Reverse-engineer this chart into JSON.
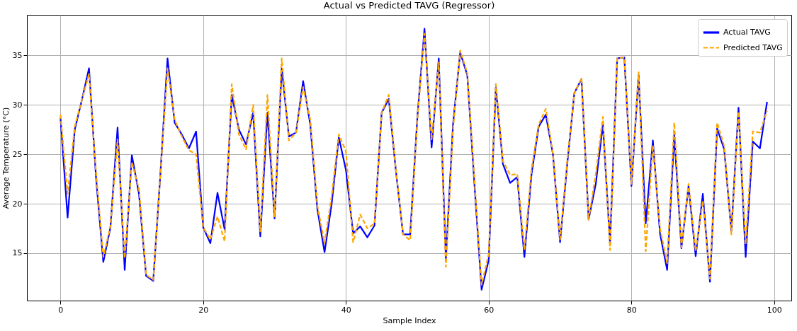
{
  "chart_data": {
    "type": "line",
    "title": "Actual vs Predicted TAVG (Regressor)",
    "xlabel": "Sample Index",
    "ylabel": "Average Temperature (°C)",
    "x": [
      0,
      1,
      2,
      3,
      4,
      5,
      6,
      7,
      8,
      9,
      10,
      11,
      12,
      13,
      14,
      15,
      16,
      17,
      18,
      19,
      20,
      21,
      22,
      23,
      24,
      25,
      26,
      27,
      28,
      29,
      30,
      31,
      32,
      33,
      34,
      35,
      36,
      37,
      38,
      39,
      40,
      41,
      42,
      43,
      44,
      45,
      46,
      47,
      48,
      49,
      50,
      51,
      52,
      53,
      54,
      55,
      56,
      57,
      58,
      59,
      60,
      61,
      62,
      63,
      64,
      65,
      66,
      67,
      68,
      69,
      70,
      71,
      72,
      73,
      74,
      75,
      76,
      77,
      78,
      79,
      80,
      81,
      82,
      83,
      84,
      85,
      86,
      87,
      88,
      89,
      90,
      91,
      92,
      93,
      94,
      95,
      96,
      97,
      98,
      99
    ],
    "series": [
      {
        "name": "Actual TAVG",
        "color": "#0000ff",
        "line_style": "solid",
        "values": [
          28.7,
          18.6,
          27.5,
          30.5,
          33.7,
          22.5,
          14.1,
          17.6,
          27.7,
          13.3,
          24.9,
          21.0,
          12.7,
          12.2,
          23.0,
          34.7,
          28.2,
          27.0,
          25.6,
          27.3,
          17.6,
          16.0,
          21.1,
          17.4,
          31.0,
          27.5,
          26.0,
          29.2,
          16.7,
          29.2,
          18.5,
          33.7,
          26.8,
          27.2,
          32.4,
          28.0,
          19.4,
          15.1,
          20.0,
          26.7,
          23.4,
          17.0,
          17.7,
          16.6,
          17.8,
          29.2,
          30.6,
          23.3,
          16.9,
          16.9,
          28.7,
          37.7,
          25.7,
          34.7,
          14.4,
          28.0,
          35.3,
          33.0,
          22.0,
          11.3,
          14.3,
          31.8,
          24.0,
          22.1,
          22.7,
          14.6,
          23.0,
          27.8,
          29.0,
          25.0,
          16.1,
          24.0,
          31.2,
          32.6,
          18.4,
          22.0,
          28.0,
          16.0,
          34.7,
          34.8,
          21.8,
          33.0,
          18.0,
          26.4,
          17.0,
          13.3,
          27.0,
          15.5,
          21.8,
          14.7,
          21.0,
          12.1,
          27.6,
          25.5,
          17.2,
          29.7,
          14.6,
          26.3,
          25.6,
          30.3
        ]
      },
      {
        "name": "Predicted TAVG",
        "color": "#ffa500",
        "line_style": "dashed",
        "values": [
          29.0,
          21.0,
          27.8,
          30.5,
          33.1,
          23.0,
          14.6,
          17.7,
          26.5,
          14.5,
          24.2,
          21.5,
          12.8,
          12.3,
          23.0,
          33.7,
          28.5,
          26.8,
          25.4,
          25.0,
          17.6,
          16.4,
          18.7,
          16.2,
          32.1,
          27.0,
          25.5,
          30.0,
          17.2,
          31.0,
          18.7,
          34.7,
          26.4,
          27.2,
          31.8,
          28.5,
          19.8,
          16.0,
          20.8,
          27.0,
          25.3,
          16.1,
          18.9,
          17.5,
          18.0,
          29.2,
          31.0,
          23.4,
          16.9,
          16.3,
          28.5,
          37.2,
          26.5,
          34.3,
          13.6,
          27.5,
          35.5,
          33.2,
          22.5,
          11.8,
          14.9,
          32.1,
          24.3,
          22.9,
          23.0,
          15.3,
          23.5,
          28.0,
          29.6,
          25.0,
          16.4,
          24.3,
          31.2,
          32.7,
          18.4,
          23.0,
          28.8,
          15.3,
          34.7,
          34.8,
          22.0,
          33.3,
          15.2,
          25.9,
          17.5,
          14.0,
          28.2,
          15.6,
          22.0,
          15.2,
          20.3,
          12.4,
          28.2,
          25.8,
          16.9,
          29.3,
          15.9,
          27.3,
          27.2,
          29.4
        ]
      }
    ],
    "xlim": [
      -4.7,
      102.4
    ],
    "ylim": [
      10.2,
      39.1
    ],
    "xticks": [
      0,
      20,
      40,
      60,
      80,
      100
    ],
    "yticks": [
      15,
      20,
      25,
      30,
      35
    ],
    "grid": true,
    "legend": "top right"
  }
}
